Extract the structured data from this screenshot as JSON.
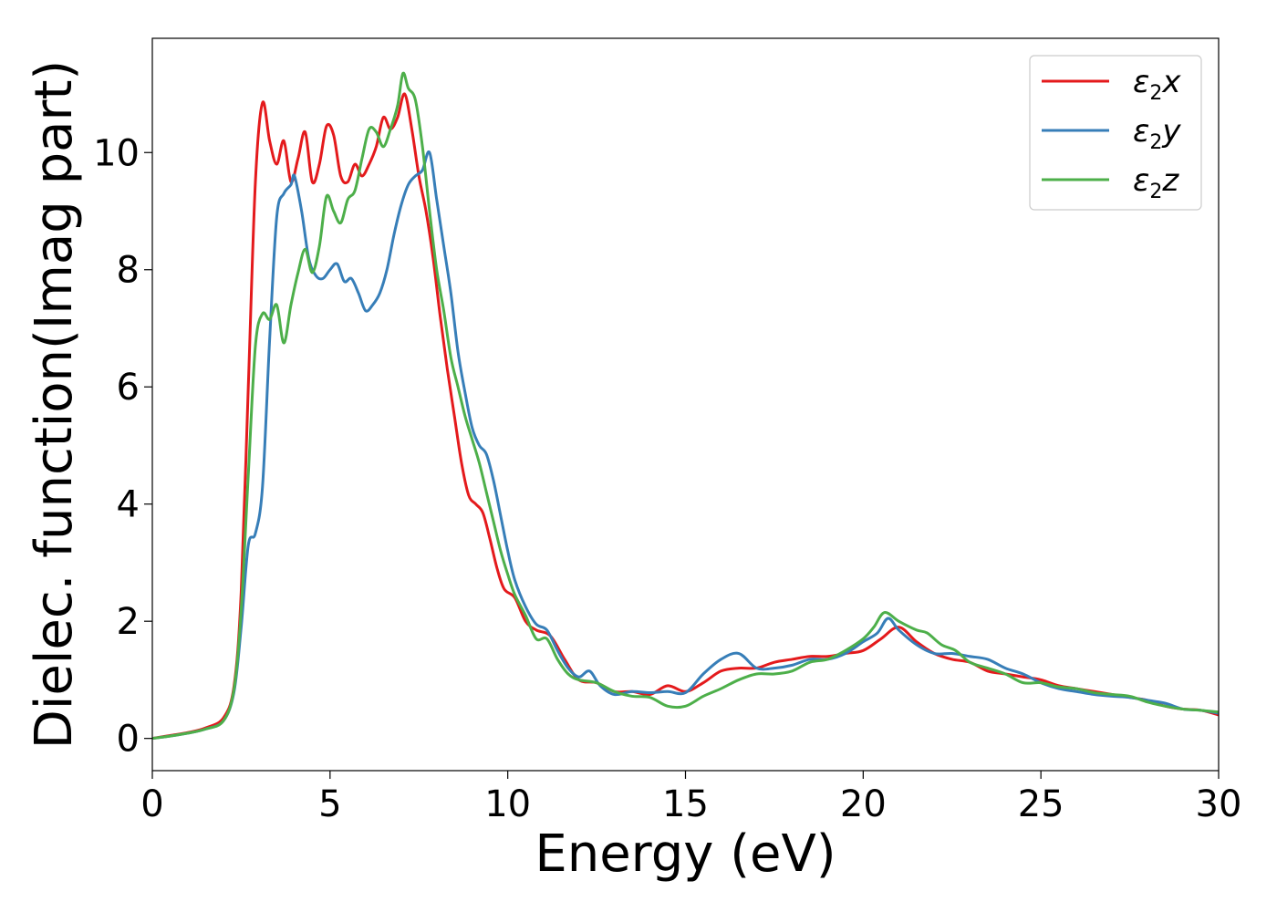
{
  "chart_data": {
    "type": "line",
    "xlabel": "Energy (eV)",
    "ylabel": "Dielec. function(Imag part)",
    "xlim": [
      0,
      30
    ],
    "ylim": [
      -0.55,
      11.95
    ],
    "xticks": [
      0,
      5,
      10,
      15,
      20,
      25,
      30
    ],
    "yticks": [
      0,
      2,
      4,
      6,
      8,
      10
    ],
    "grid": false,
    "legend_position": "top-right",
    "series": [
      {
        "name": "ε2x",
        "legend": {
          "base": "ε",
          "sub": "2",
          "var": "x"
        },
        "color": "#e41a1c",
        "points": [
          [
            0,
            0.0
          ],
          [
            0.5,
            0.05
          ],
          [
            1.0,
            0.1
          ],
          [
            1.5,
            0.18
          ],
          [
            2.0,
            0.35
          ],
          [
            2.3,
            0.9
          ],
          [
            2.5,
            2.5
          ],
          [
            2.7,
            6.0
          ],
          [
            2.9,
            9.5
          ],
          [
            3.1,
            10.85
          ],
          [
            3.3,
            10.2
          ],
          [
            3.5,
            9.8
          ],
          [
            3.7,
            10.2
          ],
          [
            3.9,
            9.5
          ],
          [
            4.1,
            9.9
          ],
          [
            4.3,
            10.35
          ],
          [
            4.5,
            9.5
          ],
          [
            4.7,
            9.8
          ],
          [
            4.9,
            10.45
          ],
          [
            5.1,
            10.3
          ],
          [
            5.3,
            9.6
          ],
          [
            5.5,
            9.5
          ],
          [
            5.7,
            9.8
          ],
          [
            5.9,
            9.6
          ],
          [
            6.1,
            9.8
          ],
          [
            6.3,
            10.1
          ],
          [
            6.5,
            10.6
          ],
          [
            6.7,
            10.4
          ],
          [
            6.9,
            10.6
          ],
          [
            7.1,
            11.0
          ],
          [
            7.3,
            10.4
          ],
          [
            7.5,
            9.6
          ],
          [
            7.7,
            9.0
          ],
          [
            7.9,
            8.2
          ],
          [
            8.1,
            7.2
          ],
          [
            8.3,
            6.3
          ],
          [
            8.5,
            5.5
          ],
          [
            8.7,
            4.7
          ],
          [
            8.9,
            4.15
          ],
          [
            9.1,
            4.0
          ],
          [
            9.3,
            3.85
          ],
          [
            9.5,
            3.4
          ],
          [
            9.7,
            2.9
          ],
          [
            9.9,
            2.55
          ],
          [
            10.2,
            2.4
          ],
          [
            10.5,
            2.0
          ],
          [
            10.8,
            1.85
          ],
          [
            11.2,
            1.75
          ],
          [
            11.6,
            1.35
          ],
          [
            12.0,
            1.0
          ],
          [
            12.5,
            0.95
          ],
          [
            13.0,
            0.8
          ],
          [
            13.5,
            0.8
          ],
          [
            14.0,
            0.75
          ],
          [
            14.5,
            0.9
          ],
          [
            15.0,
            0.8
          ],
          [
            15.5,
            0.95
          ],
          [
            16.0,
            1.15
          ],
          [
            16.5,
            1.2
          ],
          [
            17.0,
            1.2
          ],
          [
            17.5,
            1.3
          ],
          [
            18.0,
            1.35
          ],
          [
            18.5,
            1.4
          ],
          [
            19.0,
            1.4
          ],
          [
            19.5,
            1.45
          ],
          [
            20.0,
            1.5
          ],
          [
            20.5,
            1.7
          ],
          [
            21.0,
            1.9
          ],
          [
            21.5,
            1.65
          ],
          [
            22.0,
            1.45
          ],
          [
            22.5,
            1.35
          ],
          [
            23.0,
            1.3
          ],
          [
            23.5,
            1.15
          ],
          [
            24.0,
            1.1
          ],
          [
            24.5,
            1.05
          ],
          [
            25.0,
            1.0
          ],
          [
            25.5,
            0.9
          ],
          [
            26.0,
            0.85
          ],
          [
            26.5,
            0.8
          ],
          [
            27.0,
            0.75
          ],
          [
            27.5,
            0.7
          ],
          [
            28.0,
            0.65
          ],
          [
            28.5,
            0.55
          ],
          [
            29.0,
            0.5
          ],
          [
            29.5,
            0.48
          ],
          [
            30.0,
            0.4
          ]
        ]
      },
      {
        "name": "ε2y",
        "legend": {
          "base": "ε",
          "sub": "2",
          "var": "y"
        },
        "color": "#377eb8",
        "points": [
          [
            0,
            0.0
          ],
          [
            0.5,
            0.04
          ],
          [
            1.0,
            0.09
          ],
          [
            1.5,
            0.16
          ],
          [
            2.0,
            0.3
          ],
          [
            2.3,
            0.8
          ],
          [
            2.5,
            1.9
          ],
          [
            2.7,
            3.3
          ],
          [
            2.9,
            3.5
          ],
          [
            3.1,
            4.3
          ],
          [
            3.3,
            6.8
          ],
          [
            3.5,
            8.9
          ],
          [
            3.7,
            9.3
          ],
          [
            3.9,
            9.45
          ],
          [
            4.0,
            9.6
          ],
          [
            4.2,
            9.0
          ],
          [
            4.4,
            8.2
          ],
          [
            4.6,
            7.9
          ],
          [
            4.8,
            7.85
          ],
          [
            5.0,
            8.0
          ],
          [
            5.2,
            8.1
          ],
          [
            5.4,
            7.8
          ],
          [
            5.6,
            7.85
          ],
          [
            5.8,
            7.6
          ],
          [
            6.0,
            7.3
          ],
          [
            6.2,
            7.4
          ],
          [
            6.4,
            7.6
          ],
          [
            6.6,
            8.0
          ],
          [
            6.8,
            8.6
          ],
          [
            7.0,
            9.1
          ],
          [
            7.2,
            9.45
          ],
          [
            7.4,
            9.6
          ],
          [
            7.6,
            9.7
          ],
          [
            7.8,
            10.0
          ],
          [
            8.0,
            9.2
          ],
          [
            8.2,
            8.4
          ],
          [
            8.4,
            7.6
          ],
          [
            8.6,
            6.6
          ],
          [
            8.8,
            5.9
          ],
          [
            9.0,
            5.3
          ],
          [
            9.2,
            5.0
          ],
          [
            9.4,
            4.85
          ],
          [
            9.6,
            4.4
          ],
          [
            9.8,
            3.8
          ],
          [
            10.0,
            3.2
          ],
          [
            10.2,
            2.7
          ],
          [
            10.5,
            2.25
          ],
          [
            10.8,
            1.95
          ],
          [
            11.1,
            1.85
          ],
          [
            11.4,
            1.5
          ],
          [
            11.7,
            1.2
          ],
          [
            12.0,
            1.05
          ],
          [
            12.3,
            1.15
          ],
          [
            12.6,
            0.9
          ],
          [
            13.0,
            0.75
          ],
          [
            13.5,
            0.8
          ],
          [
            14.0,
            0.78
          ],
          [
            14.5,
            0.8
          ],
          [
            15.0,
            0.78
          ],
          [
            15.5,
            1.1
          ],
          [
            16.0,
            1.35
          ],
          [
            16.5,
            1.45
          ],
          [
            17.0,
            1.2
          ],
          [
            17.5,
            1.2
          ],
          [
            18.0,
            1.25
          ],
          [
            18.5,
            1.35
          ],
          [
            19.0,
            1.35
          ],
          [
            19.5,
            1.45
          ],
          [
            20.0,
            1.65
          ],
          [
            20.4,
            1.8
          ],
          [
            20.7,
            2.05
          ],
          [
            21.0,
            1.85
          ],
          [
            21.5,
            1.6
          ],
          [
            22.0,
            1.45
          ],
          [
            22.5,
            1.45
          ],
          [
            23.0,
            1.4
          ],
          [
            23.5,
            1.35
          ],
          [
            24.0,
            1.2
          ],
          [
            24.5,
            1.1
          ],
          [
            25.0,
            0.95
          ],
          [
            25.5,
            0.85
          ],
          [
            26.0,
            0.8
          ],
          [
            26.5,
            0.75
          ],
          [
            27.0,
            0.72
          ],
          [
            27.5,
            0.7
          ],
          [
            28.0,
            0.65
          ],
          [
            28.5,
            0.6
          ],
          [
            29.0,
            0.5
          ],
          [
            29.5,
            0.48
          ],
          [
            30.0,
            0.43
          ]
        ]
      },
      {
        "name": "ε2z",
        "legend": {
          "base": "ε",
          "sub": "2",
          "var": "z"
        },
        "color": "#4daf4a",
        "points": [
          [
            0,
            0.0
          ],
          [
            0.5,
            0.04
          ],
          [
            1.0,
            0.09
          ],
          [
            1.5,
            0.16
          ],
          [
            2.0,
            0.3
          ],
          [
            2.3,
            0.85
          ],
          [
            2.5,
            2.2
          ],
          [
            2.7,
            4.5
          ],
          [
            2.9,
            6.7
          ],
          [
            3.1,
            7.25
          ],
          [
            3.3,
            7.15
          ],
          [
            3.5,
            7.4
          ],
          [
            3.7,
            6.75
          ],
          [
            3.9,
            7.4
          ],
          [
            4.1,
            7.95
          ],
          [
            4.3,
            8.35
          ],
          [
            4.5,
            7.95
          ],
          [
            4.7,
            8.4
          ],
          [
            4.9,
            9.25
          ],
          [
            5.1,
            9.0
          ],
          [
            5.3,
            8.8
          ],
          [
            5.5,
            9.2
          ],
          [
            5.7,
            9.35
          ],
          [
            5.9,
            9.9
          ],
          [
            6.1,
            10.4
          ],
          [
            6.3,
            10.35
          ],
          [
            6.5,
            10.1
          ],
          [
            6.7,
            10.4
          ],
          [
            6.9,
            10.8
          ],
          [
            7.05,
            11.35
          ],
          [
            7.2,
            11.1
          ],
          [
            7.4,
            10.9
          ],
          [
            7.6,
            10.1
          ],
          [
            7.8,
            9.0
          ],
          [
            8.0,
            8.0
          ],
          [
            8.2,
            7.3
          ],
          [
            8.4,
            6.5
          ],
          [
            8.6,
            6.0
          ],
          [
            8.8,
            5.5
          ],
          [
            9.0,
            5.1
          ],
          [
            9.2,
            4.7
          ],
          [
            9.4,
            4.2
          ],
          [
            9.6,
            3.7
          ],
          [
            9.8,
            3.2
          ],
          [
            10.0,
            2.8
          ],
          [
            10.2,
            2.45
          ],
          [
            10.5,
            2.1
          ],
          [
            10.8,
            1.7
          ],
          [
            11.1,
            1.7
          ],
          [
            11.4,
            1.35
          ],
          [
            11.7,
            1.1
          ],
          [
            12.0,
            1.0
          ],
          [
            12.5,
            0.95
          ],
          [
            13.0,
            0.8
          ],
          [
            13.5,
            0.72
          ],
          [
            14.0,
            0.7
          ],
          [
            14.5,
            0.55
          ],
          [
            15.0,
            0.55
          ],
          [
            15.5,
            0.72
          ],
          [
            16.0,
            0.85
          ],
          [
            16.5,
            1.0
          ],
          [
            17.0,
            1.1
          ],
          [
            17.5,
            1.1
          ],
          [
            18.0,
            1.15
          ],
          [
            18.5,
            1.3
          ],
          [
            19.0,
            1.35
          ],
          [
            19.5,
            1.5
          ],
          [
            20.0,
            1.7
          ],
          [
            20.3,
            1.9
          ],
          [
            20.6,
            2.15
          ],
          [
            21.0,
            2.0
          ],
          [
            21.5,
            1.85
          ],
          [
            21.8,
            1.8
          ],
          [
            22.2,
            1.6
          ],
          [
            22.6,
            1.5
          ],
          [
            23.0,
            1.3
          ],
          [
            23.5,
            1.2
          ],
          [
            24.0,
            1.1
          ],
          [
            24.5,
            0.95
          ],
          [
            25.0,
            0.95
          ],
          [
            25.5,
            0.88
          ],
          [
            26.0,
            0.85
          ],
          [
            26.5,
            0.78
          ],
          [
            27.0,
            0.75
          ],
          [
            27.5,
            0.72
          ],
          [
            28.0,
            0.62
          ],
          [
            28.5,
            0.55
          ],
          [
            29.0,
            0.5
          ],
          [
            29.5,
            0.48
          ],
          [
            30.0,
            0.45
          ]
        ]
      }
    ]
  }
}
